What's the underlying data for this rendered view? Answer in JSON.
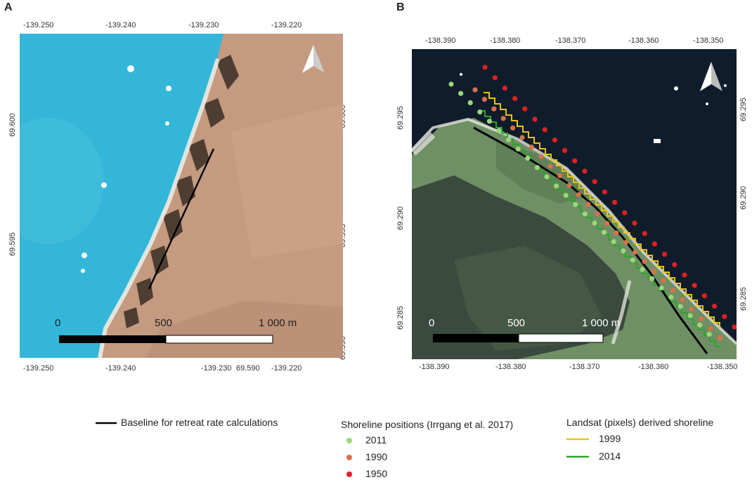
{
  "panel_a": {
    "letter": "A",
    "top_ticks": [
      "-139.250",
      "-139.240",
      "-139.230",
      "-139.220"
    ],
    "bottom_ticks": [
      "-139.250",
      "-139.240",
      "-139.230",
      "69.590",
      "-139.220"
    ],
    "left_ticks": [
      "69.600",
      "69.595"
    ],
    "right_ticks": [
      "69.600",
      "69.595",
      "69.590"
    ],
    "scale_labels": [
      "0",
      "500",
      "1 000 m"
    ],
    "colors": {
      "water": "#33b6d8",
      "land": "#c49a80"
    }
  },
  "panel_b": {
    "letter": "B",
    "top_ticks": [
      "-138.390",
      "-138.380",
      "-138.370",
      "-138.360",
      "-138.350"
    ],
    "bottom_ticks": [
      "-138.390",
      "-138.380",
      "-138.370",
      "-138.360",
      "-138.350"
    ],
    "left_ticks": [
      "69.295",
      "69.290",
      "69.285"
    ],
    "right_ticks": [
      "69.295",
      "69.290",
      "69.285"
    ],
    "scale_labels": [
      "0",
      "500",
      "1 000 m"
    ],
    "colors": {
      "water": "#0f1c2c",
      "land": "#6f9064",
      "lagoon": "#3a4a3e"
    }
  },
  "legend": {
    "baseline": "Baseline for retreat rate calculations",
    "shoreline_title": "Shoreline positions (Irrgang et al. 2017)",
    "shoreline_items": [
      {
        "label": "2011",
        "color": "#9bd67c"
      },
      {
        "label": "1990",
        "color": "#d8704c"
      },
      {
        "label": "1950",
        "color": "#e02020"
      }
    ],
    "landsat_title": "Landsat (pixels) derived shoreline",
    "landsat_items": [
      {
        "label": "1999",
        "color": "#e8c21c"
      },
      {
        "label": "2014",
        "color": "#2ea32e"
      }
    ]
  }
}
